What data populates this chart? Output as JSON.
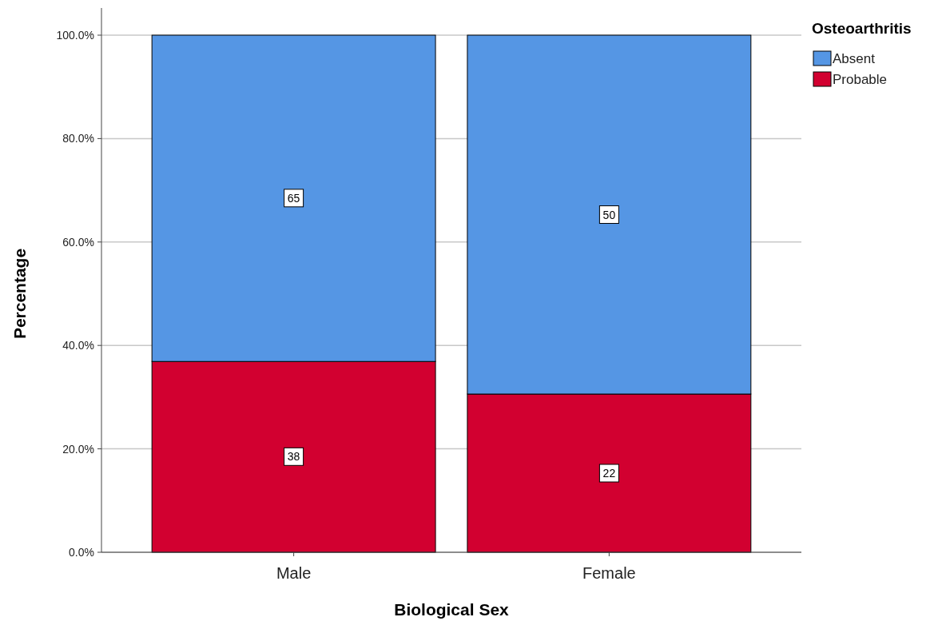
{
  "chart_data": {
    "type": "bar",
    "stacked": true,
    "xlabel": "Biological Sex",
    "ylabel": "Percentage",
    "legend_title": "Osteoarthritis",
    "legend": "right",
    "grid": "y",
    "categories": [
      "Male",
      "Female"
    ],
    "series": [
      {
        "name": "Probable",
        "color": "#d20030",
        "values": [
          36.9,
          30.6
        ]
      },
      {
        "name": "Absent",
        "color": "#5596e4",
        "values": [
          63.1,
          69.4
        ]
      }
    ],
    "annotations": [
      {
        "text": "38",
        "x": "Male",
        "y": 18.5
      },
      {
        "text": "22",
        "x": "Female",
        "y": 15.3
      },
      {
        "text": "65",
        "x": "Male",
        "y": 68.5
      },
      {
        "text": "50",
        "x": "Female",
        "y": 65.3
      }
    ],
    "ylim": [
      0,
      100
    ],
    "yticks": [
      {
        "value": 0,
        "label": "0.0%"
      },
      {
        "value": 20,
        "label": "20.0%"
      },
      {
        "value": 40,
        "label": "40.0%"
      },
      {
        "value": 60,
        "label": "60.0%"
      },
      {
        "value": 80,
        "label": "80.0%"
      },
      {
        "value": 100,
        "label": "100.0%"
      }
    ]
  }
}
